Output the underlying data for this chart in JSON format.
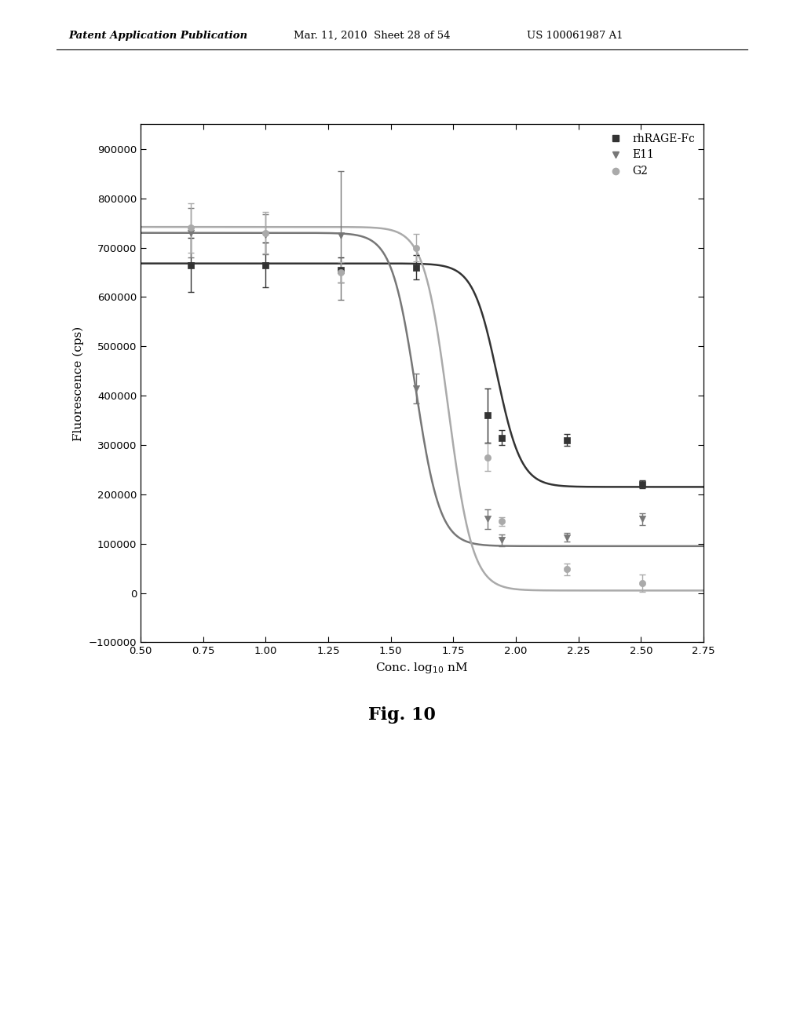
{
  "header_left": "Patent Application Publication",
  "header_mid": "Mar. 11, 2010  Sheet 28 of 54",
  "header_right": "US 100061987 A1",
  "fig_label": "Fig. 10",
  "xlabel": "Conc. log$_{10}$ nM",
  "ylabel": "Fluorescence (cps)",
  "xlim": [
    0.5,
    2.75
  ],
  "ylim": [
    -100000,
    950000
  ],
  "xticks": [
    0.5,
    0.75,
    1.0,
    1.25,
    1.5,
    1.75,
    2.0,
    2.25,
    2.5,
    2.75
  ],
  "yticks": [
    -100000,
    0,
    100000,
    200000,
    300000,
    400000,
    500000,
    600000,
    700000,
    800000,
    900000
  ],
  "series": {
    "rhRAGE_Fc": {
      "x_data": [
        0.699,
        1.0,
        1.301,
        1.602,
        1.886,
        1.944,
        2.204,
        2.505
      ],
      "y_data": [
        665000,
        665000,
        655000,
        660000,
        360000,
        315000,
        310000,
        220000
      ],
      "y_err": [
        55000,
        45000,
        25000,
        25000,
        55000,
        15000,
        12000,
        8000
      ],
      "color": "#333333",
      "marker": "s",
      "label": "rhRAGE-Fc",
      "sigmoid_top": 668000,
      "sigmoid_bottom": 215000,
      "sigmoid_ec50": 1.925,
      "sigmoid_hill": 9
    },
    "E11": {
      "x_data": [
        0.699,
        1.0,
        1.301,
        1.602,
        1.886,
        1.944,
        2.204,
        2.505
      ],
      "y_data": [
        730000,
        727000,
        725000,
        415000,
        150000,
        107000,
        113000,
        150000
      ],
      "y_err": [
        50000,
        40000,
        130000,
        30000,
        20000,
        12000,
        8000,
        12000
      ],
      "color": "#777777",
      "marker": "v",
      "label": "E11",
      "sigmoid_top": 730000,
      "sigmoid_bottom": 95000,
      "sigmoid_ec50": 1.6,
      "sigmoid_hill": 9
    },
    "G2": {
      "x_data": [
        0.699,
        1.0,
        1.301,
        1.602,
        1.886,
        1.944,
        2.204,
        2.505
      ],
      "y_data": [
        740000,
        730000,
        650000,
        700000,
        275000,
        145000,
        48000,
        20000
      ],
      "y_err": [
        50000,
        42000,
        20000,
        28000,
        28000,
        9000,
        12000,
        18000
      ],
      "color": "#aaaaaa",
      "marker": "o",
      "label": "G2",
      "sigmoid_top": 742000,
      "sigmoid_bottom": 5000,
      "sigmoid_ec50": 1.73,
      "sigmoid_hill": 9
    }
  },
  "background_color": "#ffffff"
}
